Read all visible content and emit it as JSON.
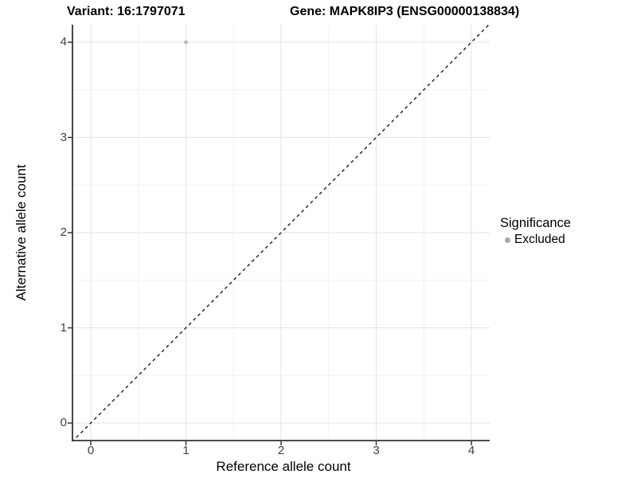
{
  "chart_data": {
    "type": "scatter",
    "title_left": "Variant: 16:1797071",
    "title_right": "Gene: MAPK8IP3 (ENSG00000138834)",
    "xlabel": "Reference allele count",
    "ylabel": "Alternative allele count",
    "xlim": [
      -0.19,
      4.19
    ],
    "ylim": [
      -0.19,
      4.19
    ],
    "x_ticks": [
      0,
      1,
      2,
      3,
      4
    ],
    "y_ticks": [
      0,
      1,
      2,
      3,
      4
    ],
    "grid": "major+minor",
    "points": [
      {
        "x": 1,
        "y": 4,
        "series": "Excluded"
      }
    ],
    "reference_line": {
      "type": "identity",
      "style": "dashed",
      "from": [
        -0.2,
        -0.2
      ],
      "to": [
        4.2,
        4.2
      ]
    },
    "legend": {
      "title": "Significance",
      "position": "right",
      "items": [
        {
          "label": "Excluded",
          "color": "#a6a6a6"
        }
      ]
    }
  },
  "colors": {
    "background": "#ffffff",
    "grid_major": "#e3e3e3",
    "grid_minor": "#f1f1f1",
    "axis": "#333333",
    "reference_line": "#1a1a1a",
    "tick_text": "#404040",
    "point": "#b8b8b8"
  }
}
